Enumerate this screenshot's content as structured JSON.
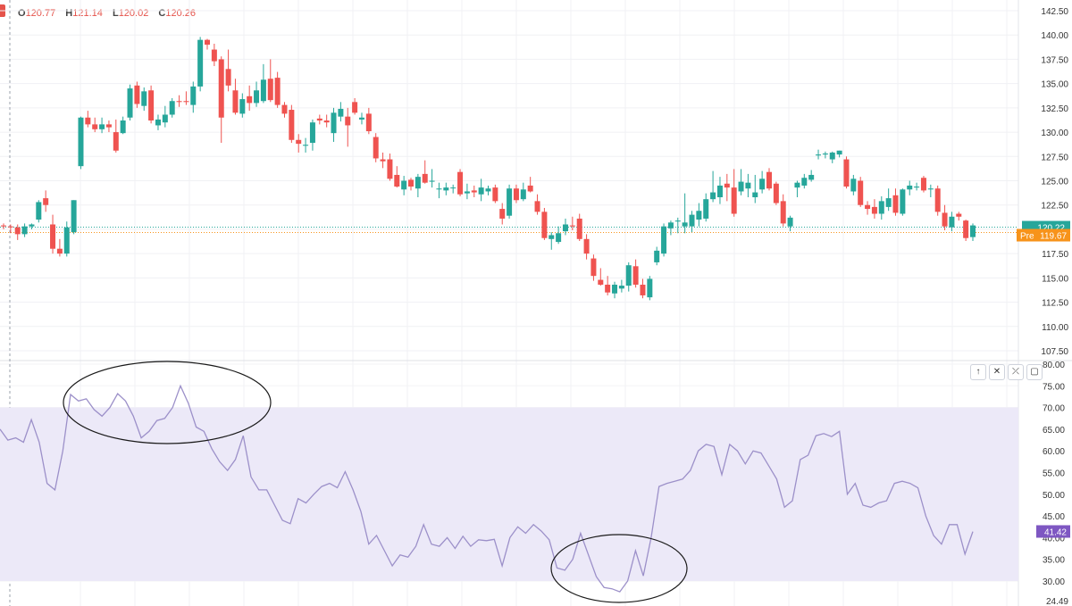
{
  "legend": {
    "open_label": "O",
    "open": "120.77",
    "high_label": "H",
    "high": "121.14",
    "low_label": "L",
    "low": "120.02",
    "close_label": "C",
    "close": "120.26"
  },
  "pane_buttons": [
    "↑",
    "✕",
    "⤫",
    "▢"
  ],
  "colors": {
    "up": "#26a69a",
    "down": "#ef5350",
    "rsi_line": "#9c90c9",
    "rsi_band": "#ece9f8",
    "last_price": "#26a69a",
    "pre_market": "#f7931a",
    "rsi_value_tag": "#7e57c2"
  },
  "chart_data": [
    {
      "type": "candlestick",
      "title": "",
      "ylim": [
        107.5,
        142.5
      ],
      "y_ticks": [
        "142.50",
        "140.00",
        "137.50",
        "135.00",
        "132.50",
        "130.00",
        "127.50",
        "125.00",
        "122.50",
        "120.00",
        "117.50",
        "115.00",
        "112.50",
        "110.00",
        "107.50"
      ],
      "last_price": 120.22,
      "last_price_label": "120.22",
      "pre_market": 119.67,
      "pre_market_label": "119.67",
      "pre_market_tag": "Pre",
      "candles": [
        [
          120.4,
          120.6,
          120.0,
          120.3
        ],
        [
          120.3,
          120.5,
          119.6,
          120.2
        ],
        [
          120.2,
          120.5,
          118.9,
          119.5
        ],
        [
          119.5,
          120.6,
          119.2,
          120.3
        ],
        [
          120.3,
          120.6,
          120.0,
          120.5
        ],
        [
          121.0,
          123.0,
          120.7,
          122.8
        ],
        [
          123.2,
          124.0,
          121.8,
          122.5
        ],
        [
          120.5,
          121.5,
          117.5,
          118.0
        ],
        [
          118.0,
          119.0,
          117.2,
          117.5
        ],
        [
          117.5,
          120.8,
          117.2,
          120.2
        ],
        [
          119.7,
          123.0,
          119.5,
          123.0
        ],
        [
          126.5,
          131.6,
          126.2,
          131.5
        ],
        [
          131.5,
          132.2,
          130.5,
          130.8
        ],
        [
          130.8,
          131.5,
          130.0,
          130.3
        ],
        [
          130.3,
          131.5,
          129.9,
          130.8
        ],
        [
          130.8,
          131.2,
          130.0,
          130.5
        ],
        [
          130.0,
          131.3,
          127.9,
          128.1
        ],
        [
          129.9,
          131.6,
          129.8,
          131.2
        ],
        [
          131.5,
          134.9,
          131.2,
          134.5
        ],
        [
          134.8,
          135.2,
          132.5,
          132.9
        ],
        [
          132.7,
          134.6,
          132.2,
          134.2
        ],
        [
          134.3,
          134.8,
          130.9,
          131.2
        ],
        [
          130.7,
          131.8,
          130.2,
          131.3
        ],
        [
          131.0,
          132.7,
          130.5,
          131.8
        ],
        [
          131.8,
          133.5,
          131.5,
          133.2
        ],
        [
          133.2,
          133.8,
          132.6,
          133.1
        ],
        [
          133.2,
          134.2,
          132.8,
          133.1
        ],
        [
          132.8,
          135.2,
          132.0,
          134.7
        ],
        [
          134.7,
          139.8,
          134.2,
          139.5
        ],
        [
          139.5,
          139.6,
          138.5,
          139.0
        ],
        [
          138.5,
          139.1,
          136.8,
          137.3
        ],
        [
          137.5,
          137.8,
          128.9,
          131.5
        ],
        [
          136.5,
          138.5,
          134.2,
          134.8
        ],
        [
          134.3,
          135.5,
          131.8,
          132.0
        ],
        [
          131.9,
          134.0,
          131.5,
          133.4
        ],
        [
          133.7,
          134.8,
          132.2,
          133.0
        ],
        [
          133.0,
          135.2,
          132.6,
          134.3
        ],
        [
          133.2,
          137.0,
          133.0,
          135.4
        ],
        [
          135.5,
          137.5,
          133.1,
          133.3
        ],
        [
          135.6,
          136.2,
          132.5,
          132.8
        ],
        [
          132.8,
          133.1,
          131.5,
          131.9
        ],
        [
          132.3,
          132.8,
          128.9,
          129.2
        ],
        [
          129.2,
          129.8,
          127.9,
          128.8
        ],
        [
          128.6,
          129.4,
          127.9,
          128.7
        ],
        [
          128.9,
          131.3,
          128.1,
          131.0
        ],
        [
          131.4,
          131.8,
          130.8,
          131.2
        ],
        [
          131.2,
          131.8,
          130.5,
          131.0
        ],
        [
          129.9,
          132.5,
          129.0,
          132.0
        ],
        [
          131.6,
          133.1,
          131.1,
          132.4
        ],
        [
          131.6,
          132.5,
          128.5,
          130.7
        ],
        [
          133.1,
          133.5,
          131.8,
          132.0
        ],
        [
          131.3,
          132.0,
          130.8,
          131.5
        ],
        [
          131.9,
          132.5,
          129.8,
          130.1
        ],
        [
          129.5,
          129.9,
          126.9,
          127.3
        ],
        [
          127.2,
          127.9,
          126.3,
          127.0
        ],
        [
          127.2,
          127.8,
          125.0,
          125.2
        ],
        [
          125.6,
          126.5,
          124.3,
          124.4
        ],
        [
          124.1,
          125.5,
          123.5,
          125.0
        ],
        [
          125.1,
          125.3,
          124.0,
          124.4
        ],
        [
          124.2,
          125.7,
          123.3,
          125.4
        ],
        [
          125.7,
          127.1,
          124.7,
          124.8
        ],
        [
          124.9,
          126.2,
          124.3,
          125.0
        ],
        [
          124.1,
          124.8,
          123.2,
          124.2
        ],
        [
          124.0,
          124.8,
          123.5,
          124.3
        ],
        [
          124.3,
          124.6,
          123.7,
          124.3
        ],
        [
          125.9,
          126.2,
          123.4,
          123.6
        ],
        [
          123.7,
          124.7,
          123.1,
          123.9
        ],
        [
          124.0,
          124.5,
          123.3,
          123.8
        ],
        [
          123.6,
          125.2,
          122.9,
          124.3
        ],
        [
          123.9,
          124.5,
          123.5,
          124.2
        ],
        [
          124.3,
          124.6,
          122.7,
          122.9
        ],
        [
          122.1,
          122.7,
          120.5,
          121.1
        ],
        [
          121.4,
          124.6,
          121.1,
          124.2
        ],
        [
          124.2,
          124.6,
          122.7,
          123.0
        ],
        [
          123.1,
          124.8,
          122.9,
          124.1
        ],
        [
          124.5,
          125.4,
          123.8,
          123.9
        ],
        [
          122.9,
          123.6,
          121.5,
          121.8
        ],
        [
          121.8,
          122.2,
          118.9,
          119.1
        ],
        [
          119.0,
          119.7,
          117.9,
          119.4
        ],
        [
          118.7,
          120.3,
          118.5,
          119.6
        ],
        [
          119.8,
          121.1,
          119.4,
          120.5
        ],
        [
          120.4,
          121.3,
          119.9,
          120.3
        ],
        [
          121.1,
          121.6,
          118.8,
          119.0
        ],
        [
          119.0,
          119.5,
          116.9,
          117.5
        ],
        [
          117.0,
          117.4,
          114.7,
          115.2
        ],
        [
          114.8,
          116.0,
          114.2,
          114.3
        ],
        [
          114.3,
          115.2,
          113.2,
          113.5
        ],
        [
          113.4,
          114.6,
          112.9,
          114.3
        ],
        [
          113.9,
          114.8,
          113.5,
          114.2
        ],
        [
          114.2,
          116.6,
          113.6,
          116.3
        ],
        [
          116.2,
          116.9,
          114.0,
          114.3
        ],
        [
          114.3,
          114.9,
          112.9,
          113.2
        ],
        [
          113.0,
          115.2,
          112.7,
          114.9
        ],
        [
          116.6,
          118.2,
          116.3,
          117.8
        ],
        [
          117.5,
          120.6,
          117.2,
          120.3
        ],
        [
          120.1,
          120.9,
          119.4,
          120.7
        ],
        [
          120.8,
          121.2,
          119.6,
          120.9
        ],
        [
          120.3,
          123.7,
          119.6,
          120.7
        ],
        [
          120.3,
          121.9,
          119.7,
          121.5
        ],
        [
          121.0,
          122.7,
          120.3,
          121.9
        ],
        [
          121.1,
          123.7,
          120.8,
          123.1
        ],
        [
          123.1,
          126.0,
          122.8,
          123.8
        ],
        [
          123.3,
          125.4,
          122.6,
          124.5
        ],
        [
          124.7,
          125.7,
          122.9,
          124.3
        ],
        [
          124.3,
          126.2,
          121.3,
          121.6
        ],
        [
          123.9,
          126.2,
          123.5,
          124.9
        ],
        [
          124.2,
          125.7,
          123.3,
          124.8
        ],
        [
          123.3,
          125.6,
          122.7,
          123.8
        ],
        [
          124.1,
          126.0,
          123.7,
          125.2
        ],
        [
          125.9,
          126.3,
          124.0,
          124.2
        ],
        [
          124.7,
          124.9,
          122.5,
          122.7
        ],
        [
          122.9,
          123.6,
          120.3,
          120.6
        ],
        [
          120.3,
          121.4,
          119.8,
          121.2
        ],
        [
          124.3,
          125.0,
          123.3,
          124.8
        ],
        [
          124.5,
          125.7,
          124.2,
          125.3
        ],
        [
          125.1,
          126.1,
          124.9,
          125.6
        ],
        [
          127.6,
          128.2,
          127.2,
          127.7
        ],
        [
          127.7,
          128.0,
          127.3,
          127.8
        ],
        [
          127.2,
          128.0,
          126.8,
          127.9
        ],
        [
          127.7,
          128.1,
          127.4,
          128.1
        ],
        [
          127.2,
          127.5,
          124.2,
          124.4
        ],
        [
          123.9,
          125.6,
          123.5,
          125.2
        ],
        [
          125.0,
          125.4,
          122.3,
          122.5
        ],
        [
          122.5,
          122.9,
          121.5,
          122.1
        ],
        [
          122.3,
          123.1,
          121.1,
          121.6
        ],
        [
          121.6,
          123.4,
          121.0,
          122.9
        ],
        [
          122.3,
          124.2,
          121.9,
          123.2
        ],
        [
          123.5,
          124.2,
          121.4,
          121.7
        ],
        [
          121.6,
          124.2,
          121.4,
          124.1
        ],
        [
          124.1,
          125.0,
          123.5,
          124.5
        ],
        [
          124.3,
          124.8,
          124.0,
          124.4
        ],
        [
          125.3,
          125.5,
          123.8,
          124.0
        ],
        [
          124.1,
          124.6,
          123.3,
          124.2
        ],
        [
          124.2,
          124.5,
          121.4,
          121.8
        ],
        [
          121.7,
          122.5,
          119.9,
          120.3
        ],
        [
          120.2,
          121.8,
          119.8,
          121.3
        ],
        [
          121.6,
          121.8,
          120.9,
          121.3
        ],
        [
          120.9,
          121.0,
          118.8,
          119.1
        ],
        [
          119.2,
          120.6,
          118.8,
          120.4
        ]
      ]
    },
    {
      "type": "line",
      "title": "",
      "ylim": [
        24.49,
        80
      ],
      "y_ticks": [
        "80.00",
        "75.00",
        "70.00",
        "65.00",
        "60.00",
        "55.00",
        "50.00",
        "45.00",
        "40.00",
        "35.00",
        "30.00"
      ],
      "bottom_label": "24.49",
      "band": [
        30,
        70
      ],
      "current_value": 41.42,
      "current_label": "41.42",
      "values": [
        65,
        62.5,
        63,
        62,
        67.2,
        62,
        52.5,
        51,
        60,
        73,
        71.5,
        72,
        69.5,
        68,
        70,
        73.2,
        71.5,
        68,
        63,
        64.5,
        67,
        67.5,
        70,
        75,
        71,
        65.5,
        64.5,
        60.5,
        57.5,
        55.5,
        58,
        63.5,
        54,
        51,
        51,
        47.5,
        44,
        43.2,
        49,
        48,
        50,
        51.8,
        52.5,
        51.5,
        55.2,
        51,
        46,
        38.5,
        40.5,
        37,
        33.5,
        36,
        35.5,
        38,
        43,
        38.5,
        38,
        40,
        37.5,
        40.3,
        38,
        39.5,
        39.3,
        39.6,
        33.5,
        40,
        42.5,
        41,
        43,
        41.5,
        39.5,
        33,
        32.5,
        35,
        41,
        36,
        31,
        28.5,
        28.2,
        27.5,
        30,
        37,
        31.2,
        40,
        51.8,
        52.5,
        53,
        53.5,
        55.5,
        60,
        61.5,
        61,
        54.5,
        61.5,
        60,
        57,
        60,
        59.5,
        56.5,
        53.5,
        47,
        48.5,
        58,
        59,
        63.5,
        64,
        63.3,
        64.5,
        50,
        52.5,
        47.5,
        47,
        48,
        48.5,
        52.5,
        53,
        52.5,
        51.5,
        45,
        40.5,
        38.5,
        43,
        43,
        36.2,
        41.4
      ]
    }
  ]
}
